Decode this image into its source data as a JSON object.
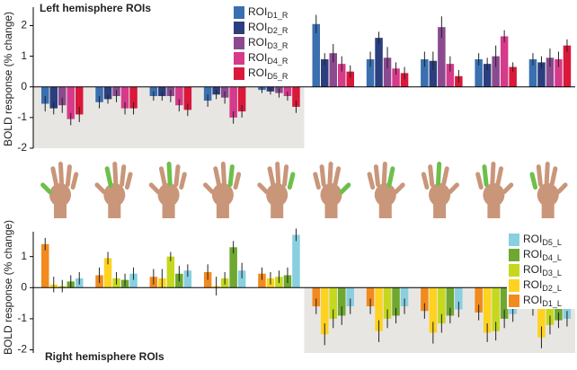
{
  "chart_data": [
    {
      "type": "bar",
      "title": "Left hemisphere ROIs",
      "y_label": "BOLD response (% change)",
      "ylim": [
        -2,
        2.6
      ],
      "yticks": [
        -2,
        -1,
        0,
        1,
        2
      ],
      "series": [
        {
          "name": "ROID1_R",
          "color": "#3a6fb0",
          "values": [
            -0.55,
            -0.5,
            -0.3,
            -0.45,
            -0.1,
            2.05,
            0.9,
            0.9,
            0.9,
            0.9
          ],
          "errors": [
            0.25,
            0.2,
            0.15,
            0.2,
            0.1,
            0.3,
            0.25,
            0.25,
            0.2,
            0.2
          ]
        },
        {
          "name": "ROID2_R",
          "color": "#2b3f7e",
          "values": [
            -0.7,
            -0.4,
            -0.3,
            -0.25,
            -0.15,
            0.9,
            1.6,
            0.85,
            0.75,
            0.8
          ],
          "errors": [
            0.2,
            0.15,
            0.15,
            0.15,
            0.1,
            0.2,
            0.2,
            0.3,
            0.2,
            0.2
          ]
        },
        {
          "name": "ROID3_R",
          "color": "#8b4a8f",
          "values": [
            -0.6,
            -0.3,
            -0.3,
            -0.35,
            -0.2,
            1.1,
            0.95,
            1.95,
            1.0,
            0.95
          ],
          "errors": [
            0.25,
            0.2,
            0.2,
            0.2,
            0.15,
            0.3,
            0.35,
            0.35,
            0.35,
            0.3
          ]
        },
        {
          "name": "ROID4_R",
          "color": "#d63a8a",
          "values": [
            -1.05,
            -0.7,
            -0.6,
            -1.0,
            -0.3,
            0.75,
            0.6,
            0.75,
            1.65,
            0.9
          ],
          "errors": [
            0.2,
            0.2,
            0.2,
            0.2,
            0.15,
            0.25,
            0.2,
            0.25,
            0.2,
            0.25
          ]
        },
        {
          "name": "ROID5_R",
          "color": "#d9183a",
          "values": [
            -0.9,
            -0.7,
            -0.75,
            -0.8,
            -0.65,
            0.5,
            0.45,
            0.35,
            0.65,
            1.35
          ],
          "errors": [
            0.25,
            0.2,
            0.2,
            0.2,
            0.2,
            0.2,
            0.2,
            0.2,
            0.15,
            0.2
          ]
        }
      ]
    },
    {
      "type": "bar",
      "title": "Right hemisphere ROIs",
      "y_label": "BOLD response (% change)",
      "ylim": [
        -2.1,
        1.8
      ],
      "yticks": [
        -2,
        -1,
        0,
        1
      ],
      "series": [
        {
          "name": "ROID1_L",
          "color": "#f28a1e",
          "values": [
            1.4,
            0.4,
            0.35,
            0.5,
            0.45,
            -0.6,
            -0.6,
            -0.75,
            -0.8,
            -0.65
          ],
          "errors": [
            0.2,
            0.25,
            0.25,
            0.25,
            0.2,
            0.25,
            0.25,
            0.25,
            0.25,
            0.25
          ]
        },
        {
          "name": "ROID2_L",
          "color": "#ffd21f",
          "values": [
            0.1,
            0.95,
            0.3,
            0.05,
            0.3,
            -1.5,
            -1.4,
            -1.45,
            -1.45,
            -1.6
          ],
          "errors": [
            0.25,
            0.2,
            0.3,
            0.3,
            0.2,
            0.35,
            0.35,
            0.35,
            0.3,
            0.35
          ]
        },
        {
          "name": "ROID3_L",
          "color": "#c5d81e",
          "values": [
            0.05,
            0.3,
            1.0,
            0.3,
            0.35,
            -1.0,
            -1.0,
            -1.15,
            -1.4,
            -1.2
          ],
          "errors": [
            0.2,
            0.2,
            0.15,
            0.2,
            0.2,
            0.3,
            0.3,
            0.3,
            0.3,
            0.3
          ]
        },
        {
          "name": "ROID4_L",
          "color": "#6fa830",
          "values": [
            0.2,
            0.25,
            0.45,
            1.3,
            0.4,
            -0.9,
            -0.9,
            -0.9,
            -1.0,
            -1.05
          ],
          "errors": [
            0.2,
            0.2,
            0.25,
            0.2,
            0.25,
            0.3,
            0.25,
            0.25,
            0.3,
            0.25
          ]
        },
        {
          "name": "ROID5_L",
          "color": "#88cfe0",
          "values": [
            0.3,
            0.45,
            0.55,
            0.55,
            1.7,
            -0.6,
            -0.6,
            -0.7,
            -0.85,
            -1.0
          ],
          "errors": [
            0.2,
            0.2,
            0.2,
            0.25,
            0.2,
            0.25,
            0.25,
            0.25,
            0.25,
            0.25
          ]
        }
      ]
    }
  ]
}
